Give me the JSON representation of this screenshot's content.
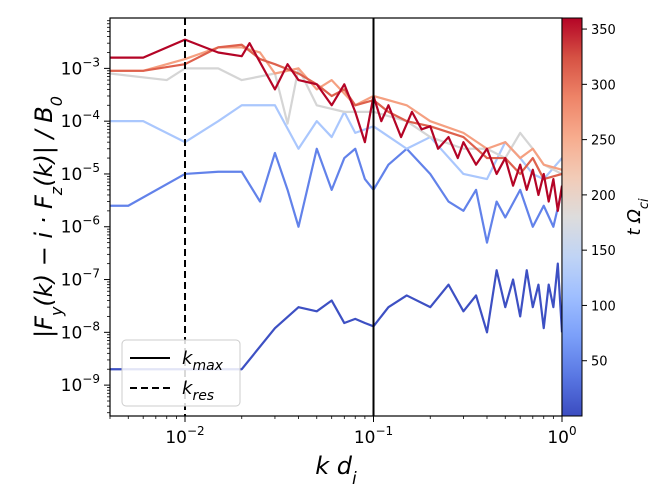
{
  "chart_data": {
    "type": "line",
    "x_scale": "log",
    "y_scale": "log",
    "xlim": [
      0.004,
      1.0
    ],
    "ylim": [
      2.6e-10,
      0.009
    ],
    "xlabel": "k d_i",
    "ylabel": "|F_y(k) − i · F_z(k)| / B_0",
    "x_ticks": [
      {
        "value": 0.01,
        "base": "10",
        "exp": "−2"
      },
      {
        "value": 0.1,
        "base": "10",
        "exp": "−1"
      },
      {
        "value": 1.0,
        "base": "10",
        "exp": "0"
      }
    ],
    "y_ticks": [
      {
        "value": 1e-09,
        "base": "10",
        "exp": "−9"
      },
      {
        "value": 1e-08,
        "base": "10",
        "exp": "−8"
      },
      {
        "value": 1e-07,
        "base": "10",
        "exp": "−7"
      },
      {
        "value": 1e-06,
        "base": "10",
        "exp": "−6"
      },
      {
        "value": 1e-05,
        "base": "10",
        "exp": "−5"
      },
      {
        "value": 0.0001,
        "base": "10",
        "exp": "−4"
      },
      {
        "value": 0.001,
        "base": "10",
        "exp": "−3"
      }
    ],
    "vertical_lines": [
      {
        "name": "k_max",
        "x": 0.1,
        "style": "solid"
      },
      {
        "name": "k_res",
        "x": 0.01,
        "style": "dashed"
      }
    ],
    "legend": {
      "position": "lower-left",
      "entries": [
        {
          "style": "solid",
          "label": "k",
          "sub": "max"
        },
        {
          "style": "dashed",
          "label": "k",
          "sub": "res"
        }
      ]
    },
    "colorbar": {
      "label": "t Ω_ci",
      "range": [
        0,
        360
      ],
      "ticks": [
        50,
        100,
        150,
        200,
        250,
        300,
        350
      ],
      "colormap": "coolwarm",
      "stops": [
        "#3b4cc0",
        "#5977e3",
        "#7b9ff9",
        "#9ebeff",
        "#c0d4f5",
        "#dddcdc",
        "#f2cbb7",
        "#f7ac8e",
        "#ee8468",
        "#d65244",
        "#b40426"
      ]
    },
    "series": [
      {
        "name": "t=5",
        "t": 5,
        "color": "#3d50c3",
        "x": [
          0.004,
          0.01,
          0.02,
          0.03,
          0.04,
          0.05,
          0.06,
          0.07,
          0.08,
          0.09,
          0.1,
          0.12,
          0.15,
          0.2,
          0.25,
          0.3,
          0.35,
          0.4,
          0.45,
          0.5,
          0.55,
          0.6,
          0.65,
          0.7,
          0.75,
          0.8,
          0.85,
          0.9,
          0.95,
          1.0
        ],
        "y": [
          2e-09,
          2e-09,
          2e-09,
          1.2e-08,
          3e-08,
          2.5e-08,
          4e-08,
          1.5e-08,
          1.8e-08,
          1.5e-08,
          1.3e-08,
          3e-08,
          5e-08,
          3e-08,
          8e-08,
          2.5e-08,
          5e-08,
          1e-08,
          1.5e-07,
          3e-08,
          1e-07,
          2e-08,
          1.5e-07,
          3e-08,
          8e-08,
          1.2e-08,
          8e-08,
          3e-08,
          2e-07,
          1e-08
        ]
      },
      {
        "name": "t=60",
        "t": 60,
        "color": "#6282ea",
        "x": [
          0.004,
          0.005,
          0.01,
          0.015,
          0.02,
          0.025,
          0.03,
          0.035,
          0.04,
          0.05,
          0.06,
          0.07,
          0.08,
          0.09,
          0.1,
          0.12,
          0.15,
          0.2,
          0.25,
          0.3,
          0.35,
          0.4,
          0.45,
          0.5,
          0.6,
          0.7,
          0.8,
          0.9,
          1.0
        ],
        "y": [
          2.5e-06,
          2.5e-06,
          1e-05,
          1.1e-05,
          1.1e-05,
          3e-06,
          2.5e-05,
          5e-06,
          1e-06,
          3e-05,
          5e-06,
          2e-05,
          3e-05,
          8e-06,
          5e-06,
          1.5e-05,
          3e-05,
          1e-05,
          3e-06,
          2e-06,
          5e-06,
          5e-07,
          3e-06,
          1.5e-06,
          5e-06,
          1e-06,
          2.5e-06,
          1e-06,
          5e-06
        ]
      },
      {
        "name": "t=120",
        "t": 120,
        "color": "#aac7fd",
        "x": [
          0.004,
          0.006,
          0.01,
          0.015,
          0.02,
          0.03,
          0.04,
          0.05,
          0.06,
          0.07,
          0.08,
          0.1,
          0.15,
          0.2,
          0.3,
          0.4,
          0.5,
          0.6,
          0.7,
          0.8,
          1.0
        ],
        "y": [
          0.0001,
          0.0001,
          4e-05,
          0.0001,
          0.0002,
          0.0002,
          3e-05,
          0.0001,
          5e-05,
          0.00015,
          6e-05,
          8e-05,
          3e-05,
          5e-05,
          1e-05,
          8e-06,
          4e-05,
          2e-05,
          1e-05,
          8e-06,
          2e-05
        ]
      },
      {
        "name": "t=190",
        "t": 190,
        "color": "#d5d5d5",
        "x": [
          0.004,
          0.008,
          0.01,
          0.015,
          0.02,
          0.03,
          0.035,
          0.04,
          0.05,
          0.07,
          0.1,
          0.15,
          0.2,
          0.3,
          0.4,
          0.5,
          0.6,
          0.7,
          0.8,
          1.0
        ],
        "y": [
          0.0008,
          0.0006,
          0.001,
          0.001,
          0.0006,
          0.0008,
          9e-05,
          0.001,
          0.0002,
          0.00015,
          0.00015,
          0.0001,
          5e-05,
          3e-05,
          3e-05,
          2e-05,
          6e-05,
          3e-05,
          1.5e-05,
          1e-05
        ]
      },
      {
        "name": "t=250",
        "t": 250,
        "color": "#f5a081",
        "x": [
          0.004,
          0.006,
          0.01,
          0.015,
          0.02,
          0.025,
          0.03,
          0.04,
          0.05,
          0.06,
          0.08,
          0.1,
          0.15,
          0.2,
          0.3,
          0.4,
          0.5,
          0.6,
          0.7,
          0.8,
          1.0
        ],
        "y": [
          0.0009,
          0.0009,
          0.0015,
          0.0025,
          0.0025,
          0.002,
          0.0008,
          0.001,
          0.0004,
          0.0006,
          0.0002,
          0.0003,
          0.0002,
          0.0001,
          6e-05,
          3e-05,
          4e-05,
          2e-05,
          3e-05,
          1.5e-05,
          1.2e-05
        ]
      },
      {
        "name": "t=300",
        "t": 300,
        "color": "#de614d",
        "x": [
          0.004,
          0.006,
          0.01,
          0.015,
          0.02,
          0.025,
          0.03,
          0.04,
          0.05,
          0.06,
          0.07,
          0.08,
          0.1,
          0.12,
          0.15,
          0.2,
          0.3,
          0.4,
          0.5,
          0.6,
          0.7,
          0.8,
          1.0
        ],
        "y": [
          0.0009,
          0.0009,
          0.0012,
          0.0025,
          0.0028,
          0.0015,
          0.0012,
          0.0008,
          0.0005,
          0.0003,
          0.0004,
          0.0002,
          0.00025,
          0.00015,
          0.0001,
          8e-05,
          5e-05,
          2e-05,
          2e-05,
          1e-05,
          2e-05,
          8e-06,
          1e-05
        ]
      },
      {
        "name": "t=350",
        "t": 350,
        "color": "#b40426",
        "x": [
          0.004,
          0.006,
          0.01,
          0.015,
          0.02,
          0.022,
          0.03,
          0.035,
          0.04,
          0.05,
          0.06,
          0.07,
          0.08,
          0.09,
          0.1,
          0.11,
          0.12,
          0.14,
          0.16,
          0.18,
          0.2,
          0.22,
          0.25,
          0.28,
          0.3,
          0.35,
          0.4,
          0.45,
          0.5,
          0.55,
          0.6,
          0.65,
          0.7,
          0.75,
          0.8,
          0.85,
          0.9,
          0.95,
          1.0
        ],
        "y": [
          0.0016,
          0.0016,
          0.0035,
          0.002,
          0.0017,
          0.003,
          0.0004,
          0.0012,
          0.0006,
          0.0005,
          0.0002,
          0.0005,
          0.00015,
          4e-05,
          0.0003,
          0.0001,
          0.0002,
          5e-05,
          0.00015,
          7e-05,
          8e-05,
          3e-05,
          5e-05,
          2e-05,
          4e-05,
          1.5e-05,
          3e-05,
          1e-05,
          2e-05,
          6e-06,
          1.5e-05,
          5e-06,
          1.2e-05,
          4e-06,
          1e-05,
          3e-06,
          8e-06,
          2e-06,
          6e-06
        ]
      }
    ]
  }
}
